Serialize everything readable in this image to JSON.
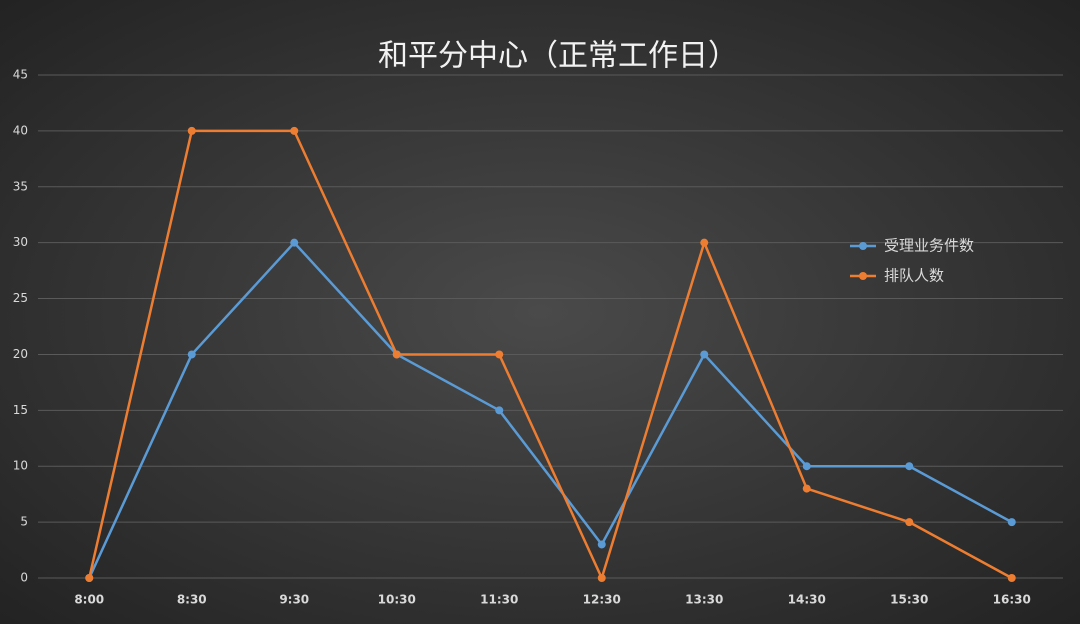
{
  "chart_data": {
    "type": "line",
    "title": "和平分中心（正常工作日）",
    "categories": [
      "8:00",
      "8:30",
      "9:30",
      "10:30",
      "11:30",
      "12:30",
      "13:30",
      "14:30",
      "15:30",
      "16:30"
    ],
    "series": [
      {
        "name": "受理业务件数",
        "color": "#5b9bd5",
        "values": [
          0,
          20,
          30,
          20,
          15,
          3,
          20,
          10,
          10,
          5
        ]
      },
      {
        "name": "排队人数",
        "color": "#ed7d31",
        "values": [
          0,
          40,
          40,
          20,
          20,
          0,
          30,
          8,
          5,
          0
        ]
      }
    ],
    "ylim": [
      0,
      45
    ],
    "yticks": [
      0,
      5,
      10,
      15,
      20,
      25,
      30,
      35,
      40,
      45
    ],
    "grid": true,
    "legend_position": "right"
  }
}
